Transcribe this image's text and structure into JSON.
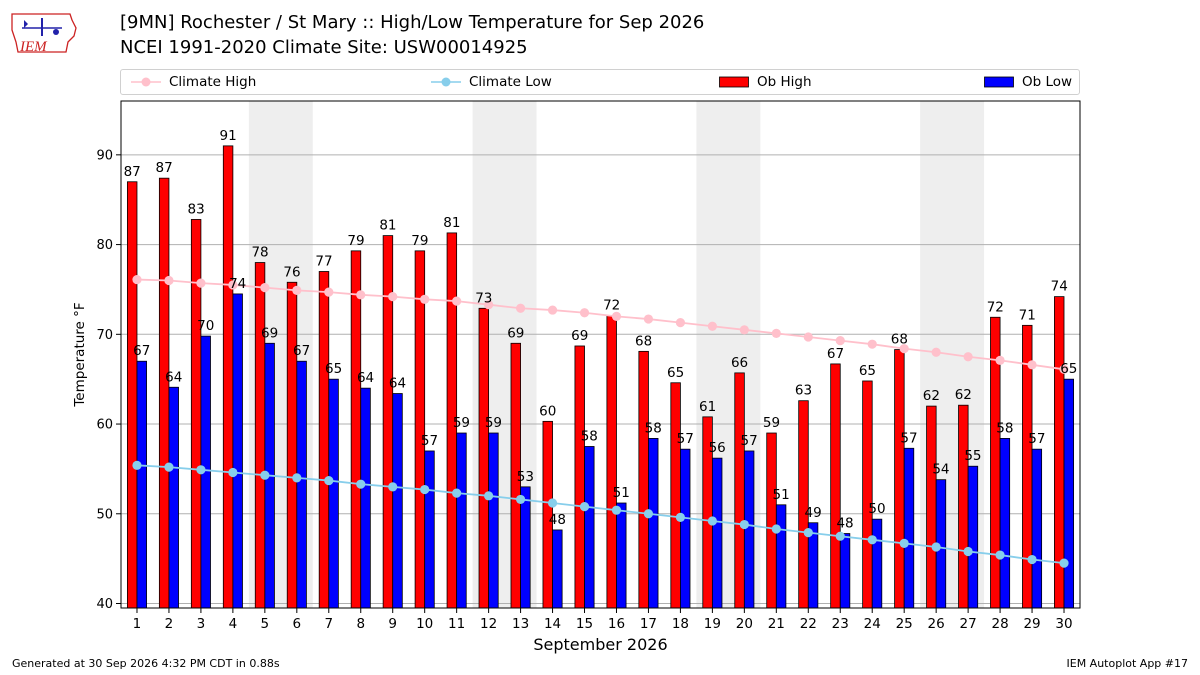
{
  "header": {
    "title": "[9MN] Rochester / St Mary :: High/Low Temperature for Sep 2026",
    "subtitle": "NCEI 1991-2020 Climate Site: USW00014925",
    "logo_text": "IEM"
  },
  "footer": {
    "generated": "Generated at 30 Sep 2026 4:32 PM CDT in 0.88s",
    "app": "IEM Autoplot App #17"
  },
  "colors": {
    "ob_high": "#ff0000",
    "ob_low": "#0000ff",
    "climate_high": "#ffc0cb",
    "climate_low": "#87ceeb",
    "weekend_band": "#eeeeee"
  },
  "chart_data": {
    "type": "bar",
    "xlabel": "September 2026",
    "ylabel": "Temperature °F",
    "xlim": [
      0.5,
      30.5
    ],
    "ylim": [
      39.5,
      96
    ],
    "yticks": [
      40,
      50,
      60,
      70,
      80,
      90
    ],
    "grid": "horizontal",
    "legend_position": "top",
    "shaded_bands": [
      [
        4.5,
        6.5
      ],
      [
        11.5,
        13.5
      ],
      [
        18.5,
        20.5
      ],
      [
        25.5,
        27.5
      ]
    ],
    "categories": [
      "1",
      "2",
      "3",
      "4",
      "5",
      "6",
      "7",
      "8",
      "9",
      "10",
      "11",
      "12",
      "13",
      "14",
      "15",
      "16",
      "17",
      "18",
      "19",
      "20",
      "21",
      "22",
      "23",
      "24",
      "25",
      "26",
      "27",
      "28",
      "29",
      "30"
    ],
    "series": [
      {
        "name": "Ob High",
        "kind": "bar",
        "color": "#ff0000",
        "values": [
          87,
          87,
          83,
          91,
          78,
          76,
          77,
          79,
          81,
          79,
          81,
          73,
          69,
          60,
          69,
          72,
          68,
          65,
          61,
          66,
          59,
          63,
          67,
          65,
          68,
          62,
          62,
          72,
          71,
          74
        ],
        "plotted": [
          87,
          87.4,
          82.8,
          91,
          78,
          75.8,
          77,
          79.3,
          81,
          79.3,
          81.3,
          72.9,
          69,
          60.3,
          68.7,
          72.1,
          68.1,
          64.6,
          60.8,
          65.7,
          59,
          62.6,
          66.7,
          64.8,
          68.3,
          62,
          62.1,
          71.9,
          71,
          74.2
        ]
      },
      {
        "name": "Ob Low",
        "kind": "bar",
        "color": "#0000ff",
        "values": [
          67,
          64,
          70,
          74,
          69,
          67,
          65,
          64,
          64,
          57,
          59,
          59,
          53,
          48,
          58,
          51,
          58,
          57,
          56,
          57,
          51,
          49,
          48,
          50,
          57,
          54,
          55,
          58,
          57,
          65
        ],
        "plotted": [
          67,
          64.1,
          69.8,
          74.5,
          69,
          67,
          65,
          64,
          63.4,
          57,
          59,
          59,
          53,
          48.2,
          57.5,
          51.2,
          58.4,
          57.2,
          56.2,
          57,
          51,
          49,
          47.8,
          49.4,
          57.3,
          53.8,
          55.3,
          58.4,
          57.2,
          65
        ]
      },
      {
        "name": "Climate High",
        "kind": "line",
        "color": "#ffc0cb",
        "values": [
          76.1,
          76,
          75.7,
          75.5,
          75.2,
          74.9,
          74.7,
          74.4,
          74.2,
          73.9,
          73.7,
          73.3,
          72.9,
          72.7,
          72.4,
          72.0,
          71.7,
          71.3,
          70.9,
          70.5,
          70.1,
          69.7,
          69.3,
          68.9,
          68.4,
          68.0,
          67.5,
          67.1,
          66.6,
          66.1
        ]
      },
      {
        "name": "Climate Low",
        "kind": "line",
        "color": "#87ceeb",
        "values": [
          55.4,
          55.2,
          54.9,
          54.6,
          54.3,
          54.0,
          53.7,
          53.3,
          53.0,
          52.7,
          52.3,
          52.0,
          51.6,
          51.2,
          50.8,
          50.4,
          50.0,
          49.6,
          49.2,
          48.8,
          48.3,
          47.9,
          47.5,
          47.1,
          46.7,
          46.3,
          45.8,
          45.4,
          44.9,
          44.5
        ]
      }
    ]
  }
}
